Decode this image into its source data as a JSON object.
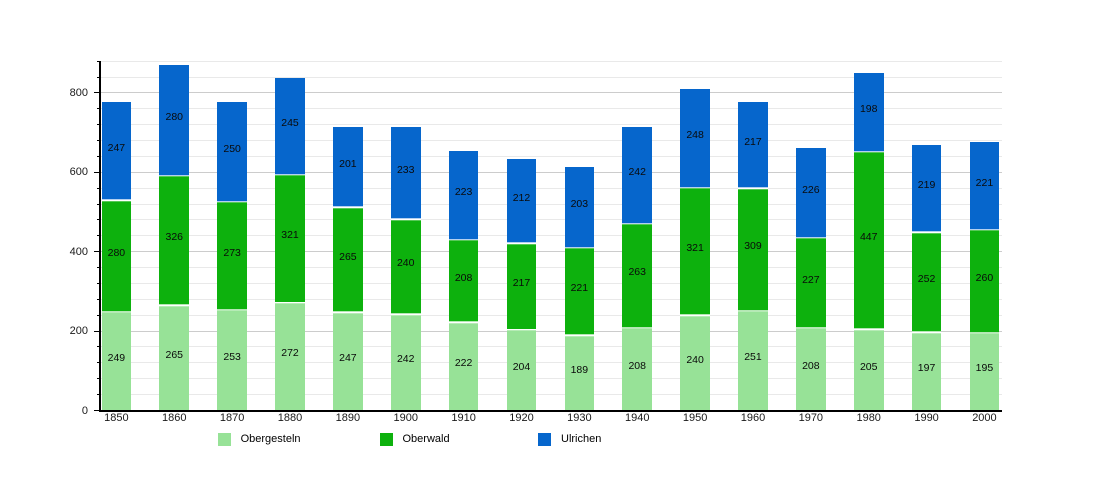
{
  "chart_data": {
    "type": "bar",
    "stacked": true,
    "title": "",
    "xlabel": "",
    "ylabel": "",
    "categories": [
      "1850",
      "1860",
      "1870",
      "1880",
      "1890",
      "1900",
      "1910",
      "1920",
      "1930",
      "1940",
      "1950",
      "1960",
      "1970",
      "1980",
      "1990",
      "2000"
    ],
    "series": [
      {
        "name": "Obergesteln",
        "color": "#97e297",
        "values": [
          249,
          265,
          253,
          272,
          247,
          242,
          222,
          204,
          189,
          208,
          240,
          251,
          208,
          205,
          197,
          195
        ]
      },
      {
        "name": "Oberwald",
        "color": "#0db10d",
        "values": [
          280,
          326,
          273,
          321,
          265,
          240,
          208,
          217,
          221,
          263,
          321,
          309,
          227,
          447,
          252,
          260
        ]
      },
      {
        "name": "Ulrichen",
        "color": "#0666cc",
        "values": [
          247,
          280,
          250,
          245,
          201,
          233,
          223,
          212,
          203,
          242,
          248,
          217,
          226,
          198,
          219,
          221
        ]
      }
    ],
    "ylim": [
      0,
      880
    ],
    "ytick_major": [
      0,
      200,
      400,
      600,
      800
    ],
    "ytick_minor_step": 40,
    "grid": "on",
    "legend_position": "bottom",
    "value_labels": "inside-segments"
  },
  "y_axis_labels": [
    "0",
    "200",
    "400",
    "600",
    "800"
  ],
  "legend": {
    "items": [
      {
        "label": "Obergesteln",
        "color": "#97e297"
      },
      {
        "label": "Oberwald",
        "color": "#0db10d"
      },
      {
        "label": "Ulrichen",
        "color": "#0666cc"
      }
    ]
  }
}
